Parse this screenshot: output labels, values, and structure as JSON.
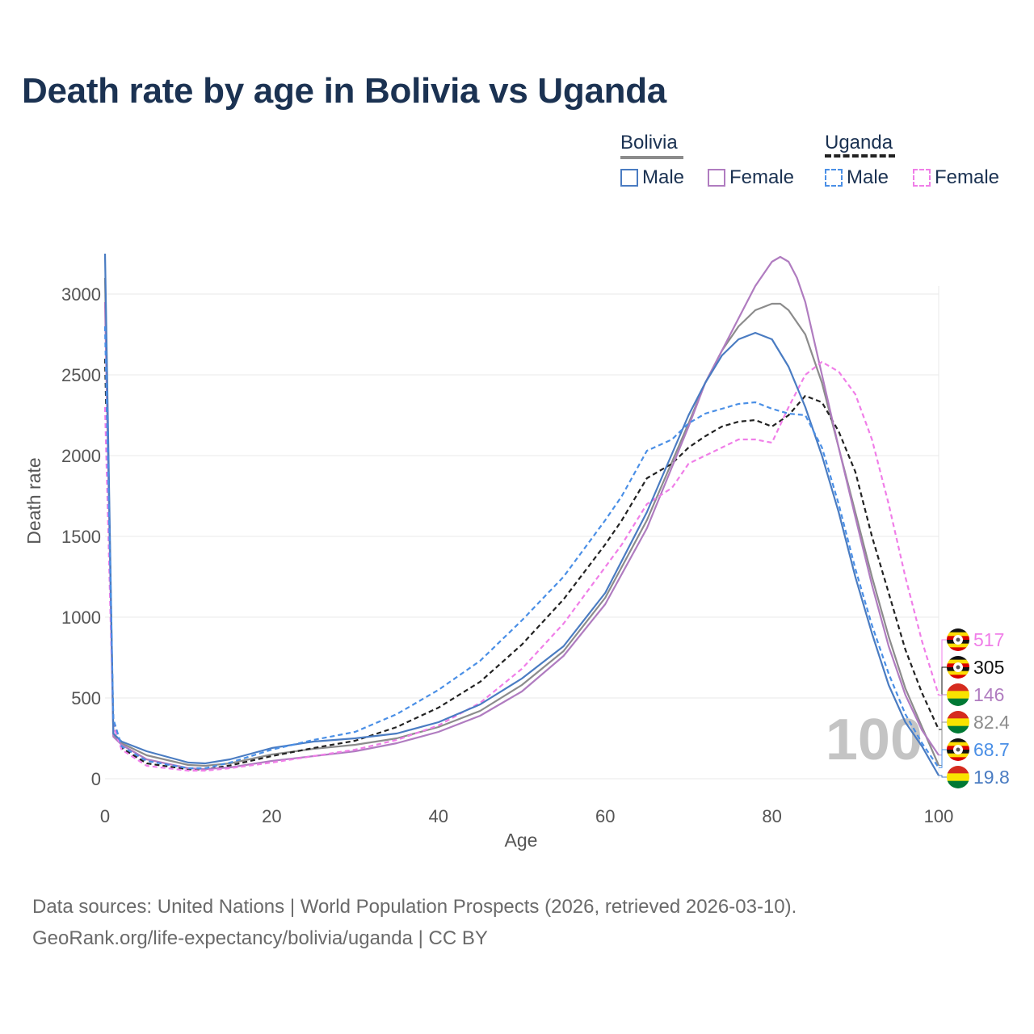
{
  "title": "Death rate by age in Bolivia vs Uganda",
  "legend": {
    "groups": [
      {
        "title": "Bolivia",
        "color": "#8c8c8c",
        "dash": "solid",
        "items": [
          {
            "label": "Male",
            "color": "#4a7cc2"
          },
          {
            "label": "Female",
            "color": "#b07cc0"
          }
        ]
      },
      {
        "title": "Uganda",
        "color": "#222222",
        "dash": "dashed",
        "items": [
          {
            "label": "Male",
            "color": "#4a8fe6"
          },
          {
            "label": "Female",
            "color": "#f07ee8"
          }
        ]
      }
    ]
  },
  "age_watermark": "100",
  "end_labels": [
    {
      "value": "517",
      "country": "Uganda",
      "color": "#f07ee8"
    },
    {
      "value": "305",
      "country": "Uganda",
      "color": "#111111"
    },
    {
      "value": "146",
      "country": "Bolivia",
      "color": "#b07cc0"
    },
    {
      "value": "82.4",
      "country": "Bolivia",
      "color": "#8c8c8c"
    },
    {
      "value": "68.7",
      "country": "Uganda",
      "color": "#4a8fe6"
    },
    {
      "value": "19.8",
      "country": "Bolivia",
      "color": "#4a7cc2"
    }
  ],
  "source": {
    "line1": "Data sources: United Nations | World Population Prospects (2026, retrieved 2026-03-10).",
    "line2": "GeoRank.org/life-expectancy/bolivia/uganda | CC BY"
  },
  "chart_data": {
    "type": "line",
    "title": "Death rate by age in Bolivia vs Uganda",
    "xlabel": "Age",
    "ylabel": "Death rate",
    "xlim": [
      0,
      100
    ],
    "ylim": [
      0,
      3250
    ],
    "xticks": [
      0,
      20,
      40,
      60,
      80,
      100
    ],
    "yticks": [
      0,
      500,
      1000,
      1500,
      2000,
      2500,
      3000
    ],
    "grid": true,
    "series": [
      {
        "name": "Bolivia Male",
        "color": "#4a7cc2",
        "dash": "solid",
        "end_value": 19.8,
        "x": [
          0,
          1,
          2,
          5,
          10,
          12,
          15,
          20,
          25,
          30,
          35,
          40,
          45,
          50,
          55,
          60,
          65,
          70,
          72,
          74,
          76,
          78,
          80,
          82,
          84,
          86,
          88,
          90,
          92,
          94,
          96,
          98,
          100
        ],
        "y": [
          3250,
          280,
          230,
          170,
          100,
          95,
          120,
          190,
          230,
          250,
          280,
          350,
          460,
          620,
          820,
          1150,
          1650,
          2250,
          2450,
          2620,
          2720,
          2760,
          2720,
          2550,
          2300,
          2000,
          1650,
          1250,
          900,
          580,
          350,
          200,
          20
        ]
      },
      {
        "name": "Bolivia Female",
        "color": "#b07cc0",
        "dash": "solid",
        "end_value": 146,
        "x": [
          0,
          1,
          2,
          5,
          10,
          12,
          15,
          20,
          25,
          30,
          35,
          40,
          45,
          50,
          55,
          60,
          65,
          70,
          72,
          74,
          76,
          78,
          80,
          81,
          82,
          83,
          84,
          86,
          88,
          90,
          92,
          94,
          96,
          98,
          100
        ],
        "y": [
          2950,
          260,
          210,
          120,
          65,
          60,
          70,
          110,
          140,
          170,
          220,
          290,
          390,
          540,
          760,
          1080,
          1550,
          2180,
          2450,
          2650,
          2850,
          3050,
          3200,
          3230,
          3200,
          3100,
          2950,
          2500,
          2050,
          1620,
          1200,
          820,
          520,
          300,
          146
        ]
      },
      {
        "name": "Bolivia Total",
        "color": "#8c8c8c",
        "dash": "solid",
        "end_value": 82.4,
        "x": [
          0,
          1,
          2,
          5,
          10,
          12,
          15,
          20,
          25,
          30,
          35,
          40,
          45,
          50,
          55,
          60,
          65,
          70,
          72,
          74,
          76,
          78,
          80,
          81,
          82,
          84,
          86,
          88,
          90,
          92,
          94,
          96,
          98,
          100
        ],
        "y": [
          3100,
          270,
          220,
          145,
          85,
          80,
          95,
          150,
          185,
          210,
          250,
          320,
          420,
          580,
          790,
          1120,
          1600,
          2200,
          2450,
          2650,
          2800,
          2900,
          2940,
          2940,
          2900,
          2750,
          2450,
          2050,
          1650,
          1250,
          880,
          560,
          320,
          82.4
        ]
      },
      {
        "name": "Uganda Male",
        "color": "#4a8fe6",
        "dash": "dashed",
        "end_value": 68.7,
        "x": [
          0,
          1,
          2,
          5,
          10,
          12,
          15,
          20,
          25,
          30,
          35,
          40,
          45,
          50,
          55,
          60,
          62,
          65,
          68,
          70,
          72,
          74,
          76,
          78,
          80,
          82,
          84,
          86,
          88,
          90,
          92,
          94,
          96,
          98,
          100
        ],
        "y": [
          2800,
          370,
          200,
          110,
          65,
          65,
          100,
          180,
          240,
          290,
          400,
          550,
          730,
          980,
          1250,
          1600,
          1750,
          2030,
          2100,
          2200,
          2260,
          2290,
          2320,
          2330,
          2290,
          2260,
          2250,
          2050,
          1700,
          1300,
          950,
          650,
          400,
          220,
          68.7
        ]
      },
      {
        "name": "Uganda Female",
        "color": "#f07ee8",
        "dash": "dashed",
        "end_value": 517,
        "x": [
          0,
          1,
          2,
          5,
          10,
          12,
          15,
          20,
          25,
          30,
          35,
          40,
          45,
          50,
          55,
          60,
          62,
          65,
          68,
          70,
          72,
          74,
          76,
          78,
          80,
          82,
          84,
          86,
          88,
          90,
          92,
          94,
          96,
          98,
          100
        ],
        "y": [
          2300,
          330,
          180,
          80,
          50,
          50,
          65,
          100,
          140,
          180,
          240,
          330,
          470,
          680,
          960,
          1310,
          1450,
          1700,
          1800,
          1950,
          2000,
          2050,
          2100,
          2100,
          2080,
          2300,
          2500,
          2580,
          2520,
          2380,
          2100,
          1700,
          1250,
          850,
          517
        ]
      },
      {
        "name": "Uganda Total",
        "color": "#222222",
        "dash": "dashed",
        "end_value": 305,
        "x": [
          0,
          1,
          2,
          5,
          10,
          12,
          15,
          20,
          25,
          30,
          35,
          40,
          45,
          50,
          55,
          60,
          62,
          65,
          68,
          70,
          72,
          74,
          76,
          78,
          80,
          82,
          84,
          86,
          88,
          90,
          92,
          94,
          96,
          98,
          100
        ],
        "y": [
          2600,
          350,
          190,
          95,
          58,
          58,
          82,
          140,
          190,
          235,
          320,
          440,
          600,
          830,
          1110,
          1450,
          1600,
          1860,
          1950,
          2050,
          2120,
          2180,
          2210,
          2220,
          2180,
          2250,
          2370,
          2330,
          2150,
          1900,
          1500,
          1150,
          800,
          530,
          305
        ]
      }
    ]
  }
}
